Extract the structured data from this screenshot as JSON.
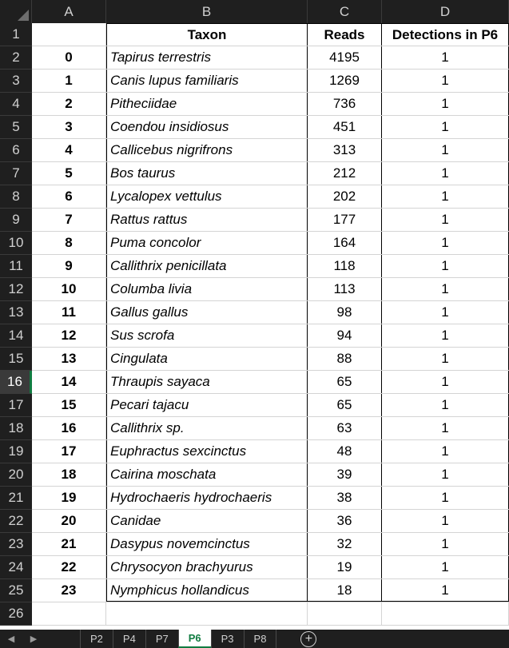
{
  "columns": [
    "A",
    "B",
    "C",
    "D"
  ],
  "header_row": {
    "row_number": "1",
    "a": "",
    "b": "Taxon",
    "c": "Reads",
    "d": "Detections in P6"
  },
  "rows": [
    {
      "row_number": "2",
      "a": "0",
      "b": "Tapirus terrestris",
      "c": "4195",
      "d": "1"
    },
    {
      "row_number": "3",
      "a": "1",
      "b": "Canis lupus familiaris",
      "c": "1269",
      "d": "1"
    },
    {
      "row_number": "4",
      "a": "2",
      "b": "Pitheciidae",
      "c": "736",
      "d": "1"
    },
    {
      "row_number": "5",
      "a": "3",
      "b": "Coendou insidiosus",
      "c": "451",
      "d": "1"
    },
    {
      "row_number": "6",
      "a": "4",
      "b": "Callicebus nigrifrons",
      "c": "313",
      "d": "1"
    },
    {
      "row_number": "7",
      "a": "5",
      "b": "Bos taurus",
      "c": "212",
      "d": "1"
    },
    {
      "row_number": "8",
      "a": "6",
      "b": "Lycalopex vettulus",
      "c": "202",
      "d": "1"
    },
    {
      "row_number": "9",
      "a": "7",
      "b": "Rattus rattus",
      "c": "177",
      "d": "1"
    },
    {
      "row_number": "10",
      "a": "8",
      "b": "Puma concolor",
      "c": "164",
      "d": "1"
    },
    {
      "row_number": "11",
      "a": "9",
      "b": "Callithrix penicillata",
      "c": "118",
      "d": "1"
    },
    {
      "row_number": "12",
      "a": "10",
      "b": "Columba livia",
      "c": "113",
      "d": "1"
    },
    {
      "row_number": "13",
      "a": "11",
      "b": "Gallus gallus",
      "c": "98",
      "d": "1"
    },
    {
      "row_number": "14",
      "a": "12",
      "b": "Sus scrofa",
      "c": "94",
      "d": "1"
    },
    {
      "row_number": "15",
      "a": "13",
      "b": "Cingulata",
      "c": "88",
      "d": "1"
    },
    {
      "row_number": "16",
      "a": "14",
      "b": "Thraupis sayaca",
      "c": "65",
      "d": "1"
    },
    {
      "row_number": "17",
      "a": "15",
      "b": "Pecari tajacu",
      "c": "65",
      "d": "1"
    },
    {
      "row_number": "18",
      "a": "16",
      "b": "Callithrix sp.",
      "c": "63",
      "d": "1"
    },
    {
      "row_number": "19",
      "a": "17",
      "b": "Euphractus sexcinctus",
      "c": "48",
      "d": "1"
    },
    {
      "row_number": "20",
      "a": "18",
      "b": "Cairina moschata",
      "c": "39",
      "d": "1"
    },
    {
      "row_number": "21",
      "a": "19",
      "b": "Hydrochaeris hydrochaeris",
      "c": "38",
      "d": "1"
    },
    {
      "row_number": "22",
      "a": "20",
      "b": "Canidae",
      "c": "36",
      "d": "1"
    },
    {
      "row_number": "23",
      "a": "21",
      "b": "Dasypus novemcinctus",
      "c": "32",
      "d": "1"
    },
    {
      "row_number": "24",
      "a": "22",
      "b": "Chrysocyon brachyurus",
      "c": "19",
      "d": "1"
    },
    {
      "row_number": "25",
      "a": "23",
      "b": "Nymphicus hollandicus",
      "c": "18",
      "d": "1"
    }
  ],
  "empty_row": {
    "row_number": "26"
  },
  "active_row_number": "16",
  "sheet_tabs": [
    "P2",
    "P4",
    "P7",
    "P6",
    "P3",
    "P8"
  ],
  "active_tab": "P6",
  "icons": {
    "prev": "chevron-left-icon",
    "next": "chevron-right-icon",
    "add": "plus-circle-icon"
  },
  "accent_color": "#107c41"
}
